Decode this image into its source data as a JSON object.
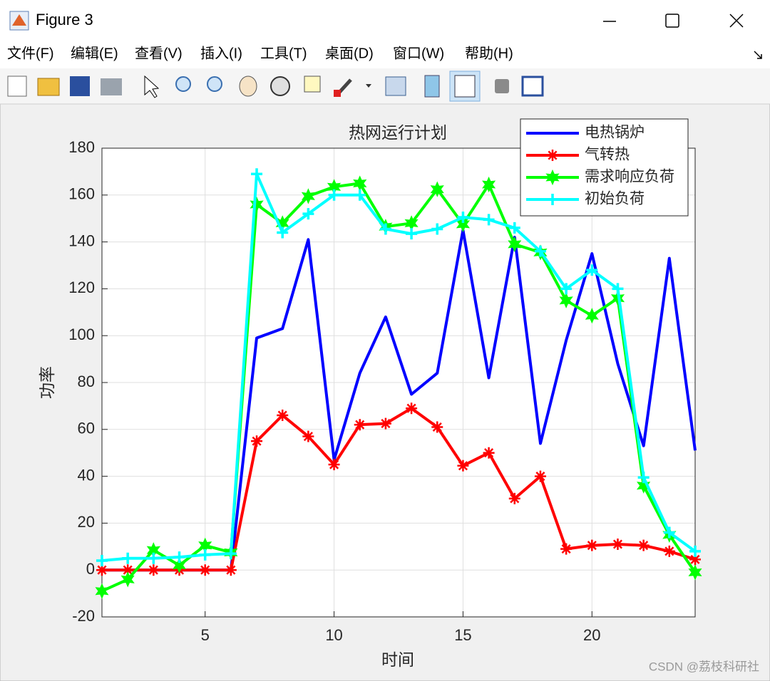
{
  "window": {
    "title": "Figure 3",
    "menu": [
      "文件(F)",
      "编辑(E)",
      "查看(V)",
      "插入(I)",
      "工具(T)",
      "桌面(D)",
      "窗口(W)",
      "帮助(H)"
    ]
  },
  "watermark": "CSDN @荔枝科研社",
  "chart_data": {
    "type": "line",
    "title": "热网运行计划",
    "x_label": "时间",
    "y_label": "功率",
    "x": [
      1,
      2,
      3,
      4,
      5,
      6,
      7,
      8,
      9,
      10,
      11,
      12,
      13,
      14,
      15,
      16,
      17,
      18,
      19,
      20,
      21,
      22,
      23,
      24
    ],
    "series": [
      {
        "name": "电热锅炉",
        "color": "#0000ff",
        "marker": "none",
        "values": [
          0,
          0,
          0,
          0,
          0,
          0,
          99,
          103,
          141,
          47,
          84,
          108,
          75,
          84,
          145,
          82,
          142,
          54,
          98,
          135,
          88,
          53,
          133,
          51
        ]
      },
      {
        "name": "气转热",
        "color": "#ff0000",
        "marker": "*",
        "values": [
          0,
          0,
          0,
          0,
          0,
          0,
          55,
          66,
          57,
          45,
          62,
          62.5,
          69,
          61,
          44.5,
          50,
          30.5,
          40,
          9,
          10.5,
          11,
          10.5,
          8,
          4.5
        ]
      },
      {
        "name": "需求响应负荷",
        "color": "#00ff00",
        "marker": "hexagram",
        "values": [
          -9,
          -4,
          8.5,
          2,
          10.5,
          7.5,
          156,
          148,
          159.5,
          163.5,
          165,
          146.5,
          148,
          162.5,
          147.5,
          164.5,
          139,
          135.5,
          115,
          108.5,
          116,
          36,
          15,
          -1
        ]
      },
      {
        "name": "初始负荷",
        "color": "#00ffff",
        "marker": "+",
        "values": [
          4,
          5,
          5,
          5.5,
          6.5,
          7,
          169,
          144,
          152,
          160,
          160,
          145.5,
          143.5,
          145.5,
          150.5,
          149.5,
          146,
          136,
          120,
          128,
          120,
          39.5,
          16,
          8
        ]
      }
    ],
    "xlim": [
      1,
      24
    ],
    "xticks": [
      5,
      10,
      15,
      20
    ],
    "ylim": [
      -20,
      180
    ],
    "yticks": [
      -20,
      0,
      20,
      40,
      60,
      80,
      100,
      120,
      140,
      160,
      180
    ],
    "grid": true,
    "legend": "northeast"
  }
}
